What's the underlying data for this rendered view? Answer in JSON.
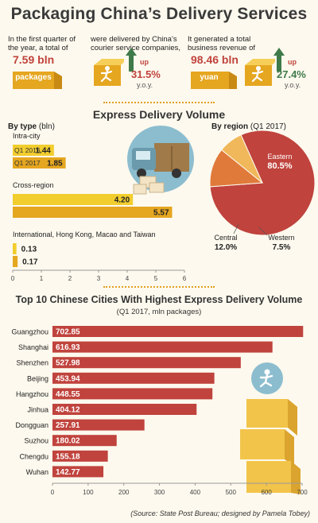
{
  "header": {
    "title": "Packaging China’s Delivery Services",
    "stat1": {
      "text1": "In the first quarter of",
      "text2": "the year, a total of",
      "value": "7.59 bln",
      "unit": "packages"
    },
    "stat2": {
      "text1": "were delivered by China’s",
      "text2": "courier service companies,",
      "up": "up",
      "pct": "31.5%",
      "yoy": "y.o.y."
    },
    "stat3": {
      "text1": "It generated a total",
      "text2": "business revenue of",
      "value": "98.46 bln",
      "unit": "yuan",
      "up": "up",
      "pct": "27.4%",
      "yoy": "y.o.y."
    }
  },
  "volume": {
    "title": "Express Delivery Volume",
    "by_type_label": "By type",
    "by_type_unit": "(bln)",
    "by_region_label": "By region",
    "by_region_unit": "(Q1 2017)",
    "legend_2016": "Q1 2016",
    "legend_2017": "Q1 2017"
  },
  "chart_data": [
    {
      "type": "bar",
      "orientation": "horizontal",
      "categories": [
        "Intra-city",
        "Cross-region",
        "International, Hong Kong, Macao and Taiwan"
      ],
      "series": [
        {
          "name": "Q1 2016",
          "values": [
            1.44,
            4.2,
            0.13
          ],
          "color": "#f2cd2e"
        },
        {
          "name": "Q1 2017",
          "values": [
            1.85,
            5.57,
            0.17
          ],
          "color": "#e5a620"
        }
      ],
      "xlim": [
        0,
        6
      ],
      "xticks": [
        0,
        1,
        2,
        3,
        4,
        5,
        6
      ],
      "value_labels": [
        [
          "1.44",
          "4.20",
          "0.13"
        ],
        [
          "1.85",
          "5.57",
          "0.17"
        ]
      ]
    },
    {
      "type": "pie",
      "categories": [
        "Eastern",
        "Central",
        "Western"
      ],
      "values": [
        80.5,
        12.0,
        7.5
      ],
      "value_labels": [
        "80.5%",
        "12.0%",
        "7.5%"
      ],
      "colors": [
        "#c0433d",
        "#e07a3a",
        "#f0b85a"
      ]
    },
    {
      "type": "bar",
      "orientation": "horizontal",
      "title": "Top 10 Chinese Cities With Highest Express Delivery Volume",
      "subtitle": "(Q1 2017, mln packages)",
      "categories": [
        "Guangzhou",
        "Shanghai",
        "Shenzhen",
        "Beijing",
        "Hangzhou",
        "Jinhua",
        "Dongguan",
        "Suzhou",
        "Chengdu",
        "Wuhan"
      ],
      "values": [
        702.85,
        616.93,
        527.98,
        453.94,
        448.55,
        404.12,
        257.91,
        180.02,
        155.18,
        142.77
      ],
      "value_labels": [
        "702.85",
        "616.93",
        "527.98",
        "453.94",
        "448.55",
        "404.12",
        "257.91",
        "180.02",
        "155.18",
        "142.77"
      ],
      "xlim": [
        0,
        700
      ],
      "xticks": [
        0,
        100,
        200,
        300,
        400,
        500,
        600,
        700
      ],
      "color": "#c0433d"
    }
  ],
  "footer": {
    "source": "(Source: State Post Bureau; designed by Pamela Tobey)"
  },
  "colors": {
    "red": "#c0433d",
    "gold": "#e5a620",
    "yellow": "#f2cd2e",
    "green": "#3e7a4a"
  },
  "icons": [
    "package-box-icon",
    "running-man-icon",
    "delivery-truck-icon",
    "stacked-boxes-icon",
    "up-arrow-icon"
  ]
}
